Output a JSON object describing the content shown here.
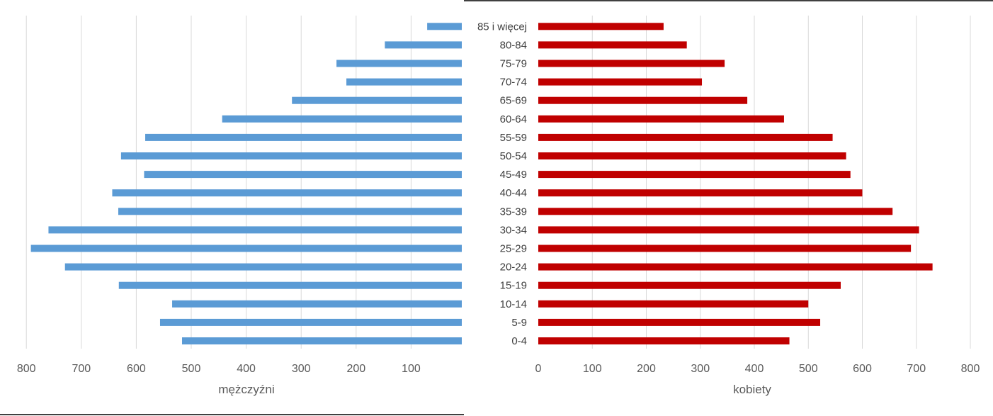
{
  "chart_data": [
    {
      "type": "bar",
      "orientation": "horizontal",
      "direction": "reversed",
      "xlabel": "mężczyźni",
      "xticks": [
        "800",
        "700",
        "600",
        "500",
        "400",
        "300",
        "200",
        "100"
      ],
      "xlim": [
        0,
        800
      ],
      "grid": true,
      "color": "#5b9bd5",
      "categories": [
        "0-4",
        "5-9",
        "10-14",
        "15-19",
        "20-24",
        "25-29",
        "30-34",
        "35-39",
        "40-44",
        "45-49",
        "50-54",
        "55-59",
        "60-64",
        "65-69",
        "70-74",
        "75-79",
        "80-84",
        "85 i więcej"
      ],
      "values": [
        509,
        549,
        527,
        624,
        722,
        784,
        752,
        625,
        636,
        578,
        620,
        576,
        436,
        309,
        210,
        228,
        140,
        63
      ]
    },
    {
      "type": "bar",
      "orientation": "horizontal",
      "xlabel": "kobiety",
      "xticks": [
        "0",
        "100",
        "200",
        "300",
        "400",
        "500",
        "600",
        "700",
        "800"
      ],
      "xlim": [
        0,
        800
      ],
      "grid": true,
      "color": "#c00000",
      "categories": [
        "0-4",
        "5-9",
        "10-14",
        "15-19",
        "20-24",
        "25-29",
        "30-34",
        "35-39",
        "40-44",
        "45-49",
        "50-54",
        "55-59",
        "60-64",
        "65-69",
        "70-74",
        "75-79",
        "80-84",
        "85 i więcej"
      ],
      "values": [
        465,
        522,
        500,
        560,
        730,
        690,
        705,
        656,
        600,
        578,
        570,
        545,
        455,
        387,
        303,
        345,
        275,
        232
      ]
    }
  ]
}
